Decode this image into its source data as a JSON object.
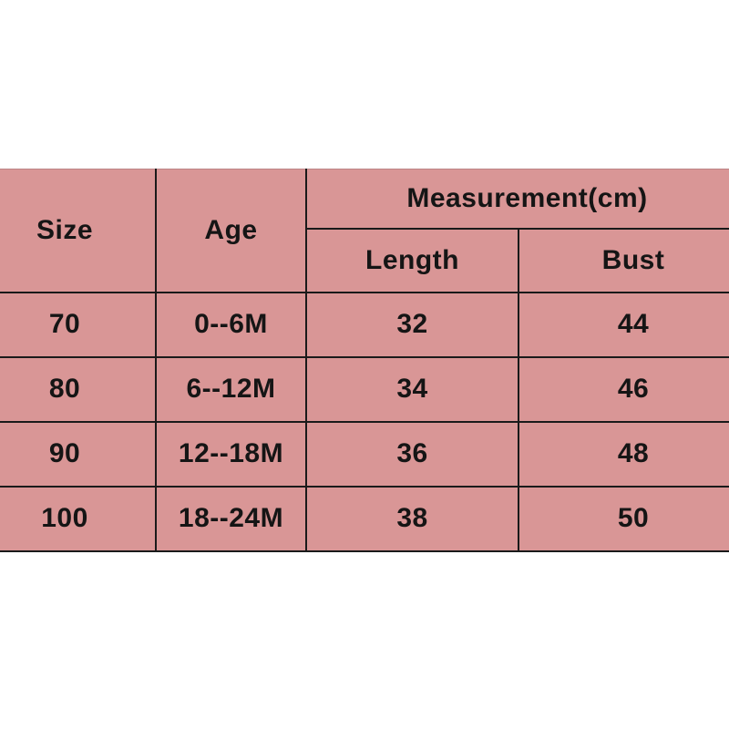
{
  "colors": {
    "table_fill": "#d99696",
    "grid_line": "#1a1a1a",
    "text": "#151515",
    "page_background": "#ffffff"
  },
  "table": {
    "header": {
      "size": "Size",
      "age": "Age",
      "measurement": "Measurement(cm)",
      "length": "Length",
      "bust": "Bust"
    },
    "rows": [
      {
        "size": "70",
        "age": "0--6M",
        "length": "32",
        "bust": "44"
      },
      {
        "size": "80",
        "age": "6--12M",
        "length": "34",
        "bust": "46"
      },
      {
        "size": "90",
        "age": "12--18M",
        "length": "36",
        "bust": "48"
      },
      {
        "size": "100",
        "age": "18--24M",
        "length": "38",
        "bust": "50"
      }
    ]
  },
  "chart_data": {
    "type": "table",
    "title": "Measurement(cm)",
    "columns": [
      "Size",
      "Age",
      "Length",
      "Bust"
    ],
    "rows": [
      [
        "70",
        "0--6M",
        "32",
        "44"
      ],
      [
        "80",
        "6--12M",
        "34",
        "46"
      ],
      [
        "90",
        "12--18M",
        "36",
        "48"
      ],
      [
        "100",
        "18--24M",
        "38",
        "50"
      ]
    ],
    "units": "cm",
    "notes": "Size chart table on rose background, cropped at left and right image edges"
  }
}
